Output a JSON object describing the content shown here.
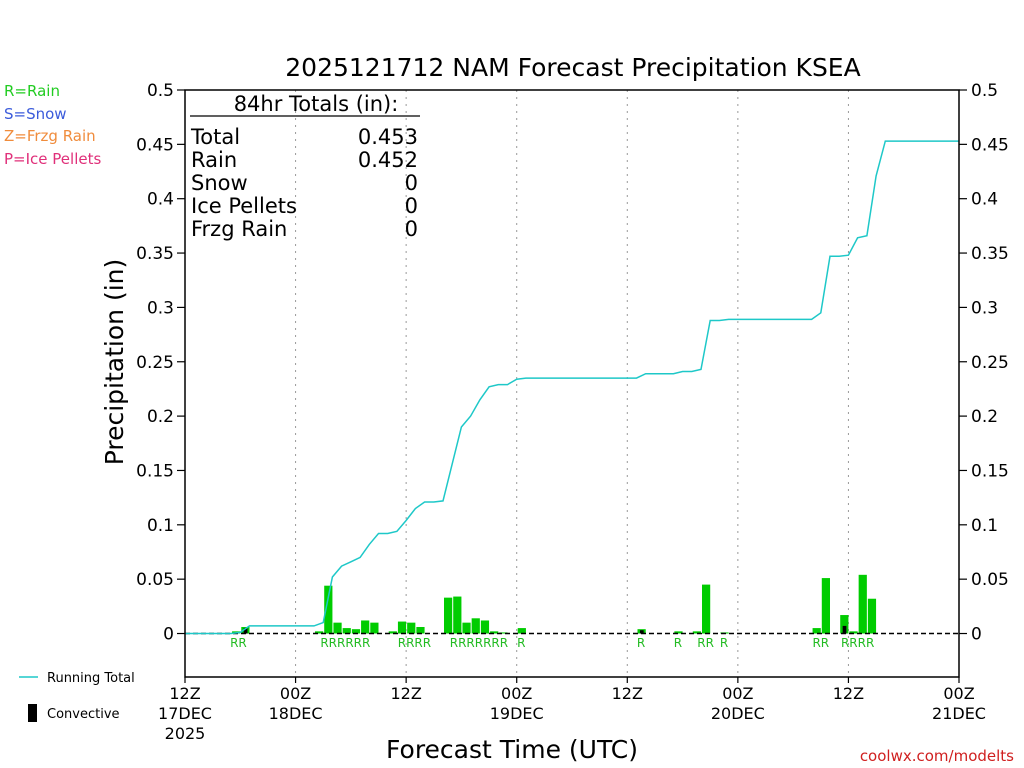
{
  "chart_data": {
    "type": "bar",
    "title": "2025121712 NAM Forecast Precipitation KSEA",
    "xlabel": "Forecast Time (UTC)",
    "ylabel": "Precipitation (in)",
    "ylim": [
      -0.04,
      0.5
    ],
    "xlim_hours": [
      0,
      84
    ],
    "y_ticks": [
      "0.5",
      "0.45",
      "0.4",
      "0.35",
      "0.3",
      "0.25",
      "0.2",
      "0.15",
      "0.1",
      "0.05",
      "0"
    ],
    "x_ticks": [
      {
        "hour": 0,
        "line1": "12Z",
        "line2": "17DEC",
        "line3": "2025"
      },
      {
        "hour": 12,
        "line1": "00Z",
        "line2": "18DEC",
        "line3": ""
      },
      {
        "hour": 24,
        "line1": "12Z",
        "line2": "",
        "line3": ""
      },
      {
        "hour": 36,
        "line1": "00Z",
        "line2": "19DEC",
        "line3": ""
      },
      {
        "hour": 48,
        "line1": "12Z",
        "line2": "",
        "line3": ""
      },
      {
        "hour": 60,
        "line1": "00Z",
        "line2": "20DEC",
        "line3": ""
      },
      {
        "hour": 72,
        "line1": "12Z",
        "line2": "",
        "line3": ""
      },
      {
        "hour": 84,
        "line1": "00Z",
        "line2": "21DEC",
        "line3": ""
      }
    ],
    "precip_type_legend": [
      {
        "label": "R=Rain",
        "color": "#22cc22"
      },
      {
        "label": "S=Snow",
        "color": "#3b5bdb"
      },
      {
        "label": "Z=Frzg Rain",
        "color": "#f08c3c"
      },
      {
        "label": "P=Ice Pellets",
        "color": "#e0307a"
      }
    ],
    "totals_box": {
      "heading": "84hr Totals (in):",
      "rows": [
        {
          "label": "Total",
          "value": "0.453"
        },
        {
          "label": "Rain",
          "value": "0.452"
        },
        {
          "label": "Snow",
          "value": "0"
        },
        {
          "label": "Ice Pellets",
          "value": "0"
        },
        {
          "label": "Frzg Rain",
          "value": "0"
        }
      ]
    },
    "bars": [
      {
        "hour": 6,
        "value": 0.002,
        "convective": 0,
        "type": "R"
      },
      {
        "hour": 7,
        "value": 0.006,
        "convective": 0.005,
        "type": "R"
      },
      {
        "hour": 15,
        "value": 0.002,
        "convective": 0,
        "type": "R"
      },
      {
        "hour": 16,
        "value": 0.044,
        "convective": 0,
        "type": "R"
      },
      {
        "hour": 17,
        "value": 0.01,
        "convective": 0,
        "type": "R"
      },
      {
        "hour": 18,
        "value": 0.005,
        "convective": 0,
        "type": "R"
      },
      {
        "hour": 19,
        "value": 0.004,
        "convective": 0,
        "type": "R"
      },
      {
        "hour": 20,
        "value": 0.012,
        "convective": 0,
        "type": "R"
      },
      {
        "hour": 21,
        "value": 0.01,
        "convective": 0,
        "type": "R"
      },
      {
        "hour": 23,
        "value": 0.002,
        "convective": 0,
        "type": "R"
      },
      {
        "hour": 24,
        "value": 0.011,
        "convective": 0,
        "type": "R"
      },
      {
        "hour": 25,
        "value": 0.01,
        "convective": 0,
        "type": "R"
      },
      {
        "hour": 26,
        "value": 0.006,
        "convective": 0,
        "type": "R"
      },
      {
        "hour": 29,
        "value": 0.033,
        "convective": 0,
        "type": "R"
      },
      {
        "hour": 30,
        "value": 0.034,
        "convective": 0,
        "type": "R"
      },
      {
        "hour": 31,
        "value": 0.01,
        "convective": 0,
        "type": "R"
      },
      {
        "hour": 32,
        "value": 0.014,
        "convective": 0,
        "type": "R"
      },
      {
        "hour": 33,
        "value": 0.012,
        "convective": 0,
        "type": "R"
      },
      {
        "hour": 34,
        "value": 0.002,
        "convective": 0,
        "type": "R"
      },
      {
        "hour": 35,
        "value": 0.001,
        "convective": 0,
        "type": "R"
      },
      {
        "hour": 37,
        "value": 0.005,
        "convective": 0,
        "type": "R"
      },
      {
        "hour": 50,
        "value": 0.004,
        "convective": 0.003,
        "type": "R"
      },
      {
        "hour": 54,
        "value": 0.002,
        "convective": 0,
        "type": "R"
      },
      {
        "hour": 56,
        "value": 0.002,
        "convective": 0,
        "type": "R"
      },
      {
        "hour": 57,
        "value": 0.045,
        "convective": 0,
        "type": "R"
      },
      {
        "hour": 59,
        "value": 0.001,
        "convective": 0,
        "type": "R"
      },
      {
        "hour": 69,
        "value": 0.005,
        "convective": 0,
        "type": "R"
      },
      {
        "hour": 70,
        "value": 0.051,
        "convective": 0,
        "type": "R"
      },
      {
        "hour": 72,
        "value": 0.017,
        "convective": 0.007,
        "type": "R"
      },
      {
        "hour": 73,
        "value": 0.002,
        "convective": 0,
        "type": "R"
      },
      {
        "hour": 74,
        "value": 0.054,
        "convective": 0,
        "type": "R"
      },
      {
        "hour": 75,
        "value": 0.032,
        "convective": 0,
        "type": "R"
      }
    ],
    "type_labels": [
      {
        "hour": 6.3,
        "text": "RR"
      },
      {
        "hour": 17.9,
        "text": "RRRRRR"
      },
      {
        "hour": 25.4,
        "text": "RRRR"
      },
      {
        "hour": 32.4,
        "text": "RRRRRRR"
      },
      {
        "hour": 37.0,
        "text": "R"
      },
      {
        "hour": 50.0,
        "text": "R"
      },
      {
        "hour": 54.0,
        "text": "R"
      },
      {
        "hour": 57.0,
        "text": "RR"
      },
      {
        "hour": 59.0,
        "text": "R"
      },
      {
        "hour": 69.5,
        "text": "RR"
      },
      {
        "hour": 73.5,
        "text": "RRRR"
      }
    ],
    "running_total": {
      "name": "Running Total",
      "color": "#1ec8c8",
      "points": [
        [
          0,
          0
        ],
        [
          5,
          0
        ],
        [
          6,
          0.001
        ],
        [
          7,
          0.007
        ],
        [
          8,
          0.007
        ],
        [
          9,
          0.007
        ],
        [
          10,
          0.007
        ],
        [
          11,
          0.007
        ],
        [
          12,
          0.007
        ],
        [
          13,
          0.007
        ],
        [
          14,
          0.007
        ],
        [
          15,
          0.01
        ],
        [
          16,
          0.052
        ],
        [
          17,
          0.062
        ],
        [
          18,
          0.066
        ],
        [
          19,
          0.07
        ],
        [
          20,
          0.082
        ],
        [
          21,
          0.092
        ],
        [
          22,
          0.092
        ],
        [
          23,
          0.094
        ],
        [
          24,
          0.104
        ],
        [
          25,
          0.115
        ],
        [
          26,
          0.121
        ],
        [
          27,
          0.121
        ],
        [
          28,
          0.122
        ],
        [
          29,
          0.156
        ],
        [
          30,
          0.19
        ],
        [
          31,
          0.2
        ],
        [
          32,
          0.215
        ],
        [
          33,
          0.227
        ],
        [
          34,
          0.229
        ],
        [
          35,
          0.229
        ],
        [
          36,
          0.234
        ],
        [
          37,
          0.235
        ],
        [
          48,
          0.235
        ],
        [
          49,
          0.235
        ],
        [
          50,
          0.239
        ],
        [
          51,
          0.239
        ],
        [
          52,
          0.239
        ],
        [
          53,
          0.239
        ],
        [
          54,
          0.241
        ],
        [
          55,
          0.241
        ],
        [
          56,
          0.243
        ],
        [
          57,
          0.288
        ],
        [
          58,
          0.288
        ],
        [
          59,
          0.289
        ],
        [
          60,
          0.289
        ],
        [
          61,
          0.289
        ],
        [
          68,
          0.289
        ],
        [
          69,
          0.295
        ],
        [
          70,
          0.347
        ],
        [
          71,
          0.347
        ],
        [
          72,
          0.348
        ],
        [
          73,
          0.364
        ],
        [
          74,
          0.366
        ],
        [
          75,
          0.421
        ],
        [
          76,
          0.453
        ],
        [
          84,
          0.453
        ]
      ]
    },
    "series_legend": [
      {
        "name": "Running Total",
        "kind": "line"
      },
      {
        "name": "Convective",
        "kind": "bar"
      }
    ],
    "colors": {
      "rain_bar": "#00cc00",
      "rain_label": "#22bb22",
      "convective_bar": "#000000",
      "running_total": "#1ec8c8",
      "gridline": "#999999",
      "credit": "#d02020"
    }
  },
  "credit": "coolwx.com/modelts"
}
